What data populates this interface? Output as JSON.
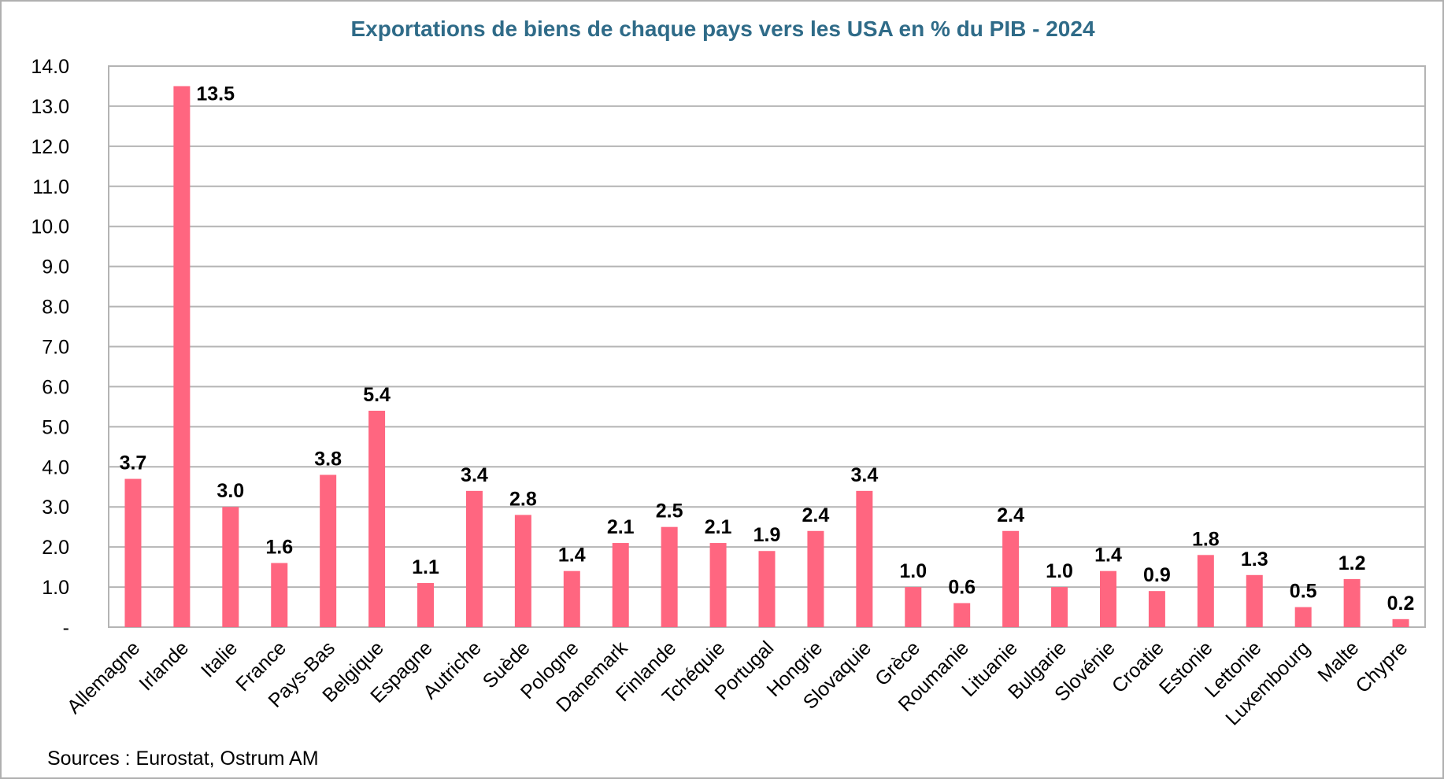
{
  "chart_data": {
    "type": "bar",
    "title": "Exportations de biens de chaque pays vers les USA en % du PIB - 2024",
    "xlabel": "",
    "ylabel": "",
    "ylim": [
      0,
      14
    ],
    "yticks": [
      "-",
      "1.0",
      "2.0",
      "3.0",
      "4.0",
      "5.0",
      "6.0",
      "7.0",
      "8.0",
      "9.0",
      "10.0",
      "11.0",
      "12.0",
      "13.0",
      "14.0"
    ],
    "grid": true,
    "categories": [
      "Allemagne",
      "Irlande",
      "Italie",
      "France",
      "Pays-Bas",
      "Belgique",
      "Espagne",
      "Autriche",
      "Suède",
      "Pologne",
      "Danemark",
      "Finlande",
      "Tchéquie",
      "Portugal",
      "Hongrie",
      "Slovaquie",
      "Grèce",
      "Roumanie",
      "Lituanie",
      "Bulgarie",
      "Slovénie",
      "Croatie",
      "Estonie",
      "Lettonie",
      "Luxembourg",
      "Malte",
      "Chypre"
    ],
    "values": [
      3.7,
      13.5,
      3.0,
      1.6,
      3.8,
      5.4,
      1.1,
      3.4,
      2.8,
      1.4,
      2.1,
      2.5,
      2.1,
      1.9,
      2.4,
      3.4,
      1.0,
      0.6,
      2.4,
      1.0,
      1.4,
      0.9,
      1.8,
      1.3,
      0.5,
      1.2,
      0.2
    ],
    "labels": [
      "3.7",
      "13.5",
      "3.0",
      "1.6",
      "3.8",
      "5.4",
      "1.1",
      "3.4",
      "2.8",
      "1.4",
      "2.1",
      "2.5",
      "2.1",
      "1.9",
      "2.4",
      "3.4",
      "1.0",
      "0.6",
      "2.4",
      "1.0",
      "1.4",
      "0.9",
      "1.8",
      "1.3",
      "0.5",
      "1.2",
      "0.2"
    ],
    "colors": {
      "bar": "#FF6680",
      "title": "#2F6B88",
      "grid": "#B4B4B4"
    },
    "source": "Sources : Eurostat, Ostrum AM"
  }
}
